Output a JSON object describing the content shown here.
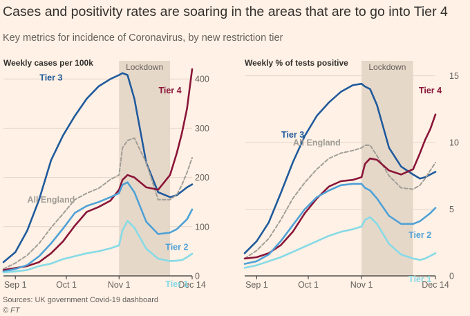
{
  "title": "Cases and positivity rates are soaring in the areas that are to go into Tier 4",
  "subtitle": "Key metrics for incidence of Coronavirus, by new restriction tier",
  "source": "Sources: UK government Covid-19 dashboard",
  "credit": "© FT",
  "colors": {
    "tier1": "#86dae6",
    "tier2": "#4fa1d6",
    "tier3": "#1f5a9c",
    "tier4": "#8a1538",
    "all_england": "#a19e97",
    "lockdown_shade": "#e6d8c9",
    "grid": "#e3d5c8",
    "axis": "#33302e"
  },
  "chart_data": [
    {
      "type": "line",
      "title": "Weekly cases per 100k",
      "shaded_region": {
        "label": "Lockdown",
        "from": "Nov 1",
        "to": "Dec 1"
      },
      "x_ticks": [
        "Sep 1",
        "Oct 1",
        "Nov 1",
        "Dec 14"
      ],
      "ylim": [
        0,
        420
      ],
      "y_ticks": [
        0,
        100,
        200,
        300,
        400
      ],
      "y_tick_labels": [
        "0",
        "100",
        "200",
        "300",
        "400"
      ],
      "grid": true,
      "x_dates": [
        "Aug 25",
        "Sep 1",
        "Sep 8",
        "Sep 15",
        "Sep 22",
        "Sep 29",
        "Oct 6",
        "Oct 13",
        "Oct 20",
        "Oct 27",
        "Nov 1",
        "Nov 3",
        "Nov 6",
        "Nov 10",
        "Nov 17",
        "Nov 24",
        "Dec 1",
        "Dec 5",
        "Dec 8",
        "Dec 11",
        "Dec 14"
      ],
      "series": [
        {
          "name": "Tier 3",
          "label_at": "Sep 22",
          "label_dy": -115,
          "color_key": "tier3",
          "dashed": false,
          "values": [
            28,
            48,
            92,
            155,
            235,
            285,
            325,
            360,
            385,
            400,
            408,
            412,
            408,
            360,
            230,
            170,
            160,
            164,
            172,
            180,
            186
          ]
        },
        {
          "name": "All England",
          "label_at": "Sep 22",
          "label_dy": -36,
          "color_key": "all_england",
          "dashed": true,
          "values": [
            14,
            26,
            42,
            66,
            98,
            126,
            155,
            168,
            178,
            196,
            205,
            260,
            275,
            280,
            230,
            155,
            155,
            165,
            185,
            210,
            240
          ]
        },
        {
          "name": "Tier 4",
          "label_at": "Dec 1",
          "label_dy": -118,
          "color_key": "tier4",
          "dashed": false,
          "values": [
            12,
            16,
            20,
            28,
            46,
            70,
            102,
            130,
            140,
            153,
            175,
            195,
            205,
            200,
            180,
            175,
            205,
            250,
            290,
            340,
            420
          ]
        },
        {
          "name": "Tier 2",
          "label_at": "Dec 5",
          "label_dy": 30,
          "color_key": "tier2",
          "dashed": false,
          "values": [
            9,
            14,
            22,
            40,
            66,
            96,
            128,
            142,
            150,
            160,
            168,
            185,
            190,
            170,
            110,
            85,
            88,
            95,
            105,
            115,
            135
          ]
        },
        {
          "name": "Tier 1",
          "label_at": "Dec 5",
          "label_dy": 38,
          "color_key": "tier1",
          "dashed": false,
          "values": [
            7,
            9,
            12,
            20,
            25,
            34,
            40,
            46,
            50,
            56,
            62,
            92,
            112,
            98,
            55,
            35,
            30,
            31,
            32,
            38,
            45
          ]
        }
      ]
    },
    {
      "type": "line",
      "title": "Weekly % of tests positive",
      "shaded_region": {
        "label": "Lockdown",
        "from": "Nov 1",
        "to": "Dec 1"
      },
      "x_ticks": [
        "Sep 1",
        "Oct 1",
        "Nov 1",
        "Dec 14"
      ],
      "ylim": [
        0,
        15.5
      ],
      "y_ticks": [
        0,
        5,
        10,
        15
      ],
      "y_tick_labels": [
        "0",
        "5",
        "10",
        "15"
      ],
      "grid": true,
      "x_dates": [
        "Aug 25",
        "Sep 1",
        "Sep 8",
        "Sep 15",
        "Sep 22",
        "Sep 29",
        "Oct 6",
        "Oct 13",
        "Oct 20",
        "Oct 27",
        "Nov 1",
        "Nov 3",
        "Nov 6",
        "Nov 10",
        "Nov 17",
        "Nov 24",
        "Dec 1",
        "Dec 5",
        "Dec 8",
        "Dec 11",
        "Dec 14"
      ],
      "series": [
        {
          "name": "Tier 3",
          "label_at": "Sep 22",
          "label_dy": -36,
          "color_key": "tier3",
          "dashed": false,
          "values": [
            1.7,
            2.6,
            4.0,
            6.2,
            8.5,
            10.5,
            12.0,
            13.0,
            13.8,
            14.3,
            14.4,
            14.2,
            14.0,
            12.8,
            9.6,
            8.2,
            7.6,
            7.3,
            7.4,
            7.6,
            7.8
          ]
        },
        {
          "name": "All England",
          "label_at": "Oct 6",
          "label_dy": -34,
          "color_key": "all_england",
          "dashed": true,
          "values": [
            1.3,
            1.9,
            2.8,
            4.2,
            5.8,
            7.0,
            8.0,
            8.8,
            9.2,
            9.4,
            9.6,
            9.8,
            9.8,
            9.0,
            7.5,
            6.6,
            6.5,
            6.8,
            7.3,
            7.9,
            8.5
          ]
        },
        {
          "name": "Tier 4",
          "label_at": "Dec 11",
          "label_dy": -52,
          "color_key": "tier4",
          "dashed": false,
          "values": [
            1.3,
            1.4,
            1.7,
            2.3,
            3.3,
            4.7,
            5.8,
            6.7,
            7.1,
            7.2,
            7.4,
            8.4,
            8.8,
            8.7,
            7.9,
            7.6,
            8.0,
            9.2,
            10.2,
            11.0,
            12.1
          ]
        },
        {
          "name": "Tier 2",
          "label_at": "Dec 5",
          "label_dy": 24,
          "color_key": "tier2",
          "dashed": false,
          "values": [
            0.9,
            1.1,
            1.6,
            2.6,
            3.8,
            5.0,
            5.9,
            6.4,
            6.8,
            6.9,
            6.9,
            6.6,
            6.4,
            5.8,
            4.5,
            3.9,
            3.9,
            4.1,
            4.4,
            4.7,
            5.1
          ]
        },
        {
          "name": "Tier 1",
          "label_at": "Dec 5",
          "label_dy": 32,
          "color_key": "tier1",
          "dashed": false,
          "values": [
            0.6,
            0.8,
            1.1,
            1.4,
            1.8,
            2.2,
            2.6,
            3.0,
            3.3,
            3.5,
            3.7,
            4.2,
            4.4,
            3.9,
            2.4,
            1.6,
            1.3,
            1.2,
            1.3,
            1.5,
            1.7
          ]
        }
      ]
    }
  ]
}
